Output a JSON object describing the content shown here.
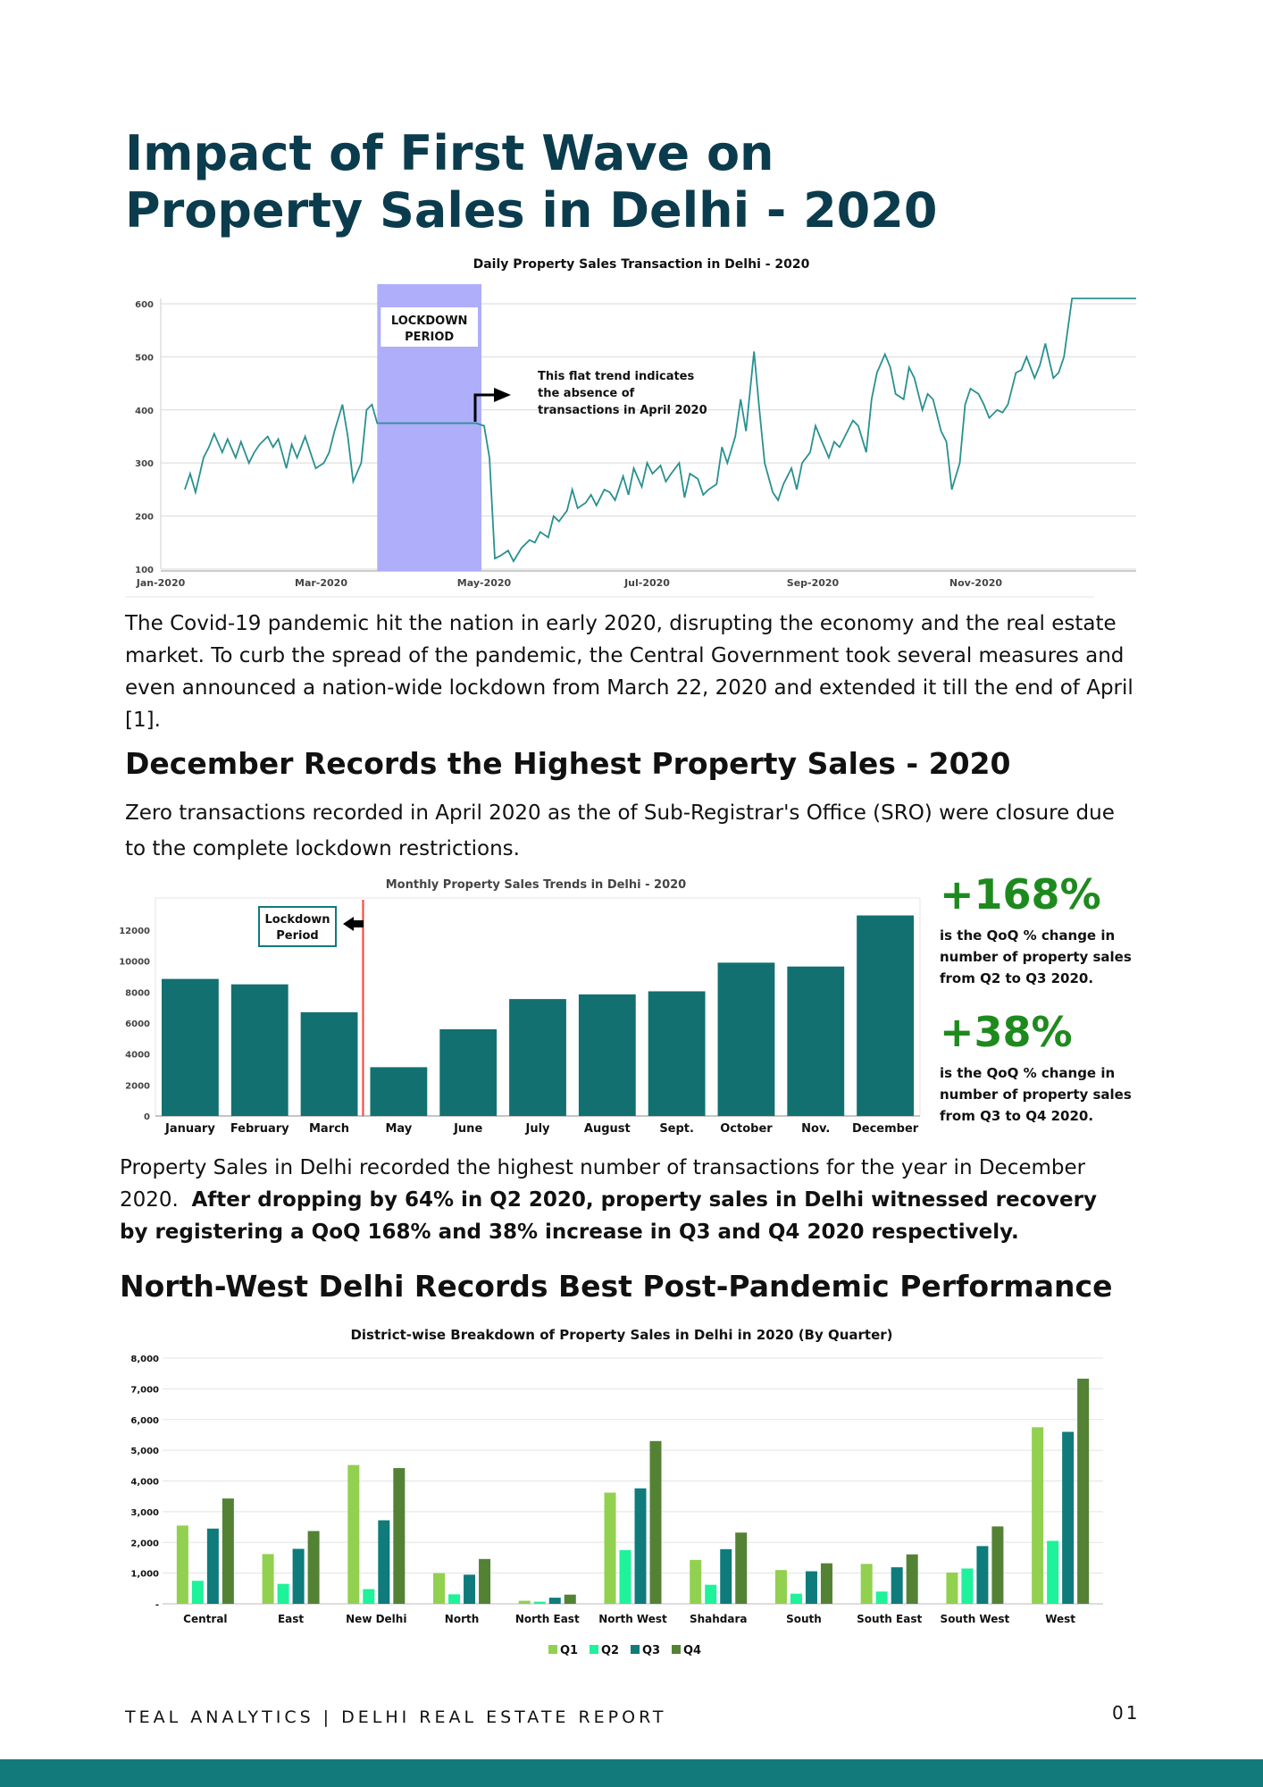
{
  "page": {
    "title": "Impact of First Wave on Property Sales in Delhi - 2020",
    "intro_paragraph": "The Covid-19 pandemic hit the nation in early 2020, disrupting the economy and the real estate market.  To curb the spread of the pandemic, the Central Government took several measures and even announced a nation-wide lockdown from March 22, 2020 and extended it till the end of April [1].",
    "section2_heading": "December Records the Highest Property Sales - 2020",
    "section2_paragraph": "Zero transactions recorded in April 2020 as the of Sub-Registrar's Office (SRO) were closure due to the complete lockdown restrictions.",
    "section2_summary_regular": "Property Sales in Delhi recorded the highest number of transactions for the year in December 2020.",
    "section2_summary_bold": "After dropping by 64% in Q2 2020, property sales in Delhi witnessed recovery by registering a QoQ 168% and 38% increase in Q3 and Q4 2020 respectively.",
    "section3_heading": "North-West Delhi Records Best Post-Pandemic Performance",
    "footer_brand": "TEAL ANALYTICS | DELHI REAL ESTATE REPORT",
    "footer_page": "01"
  },
  "stats": [
    {
      "value": "+168%",
      "description": "is the QoQ % change in number of property sales from Q2 to Q3 2020."
    },
    {
      "value": "+38%",
      "description": "is the QoQ % change in number of property sales from Q3 to Q4 2020."
    }
  ],
  "colors": {
    "title": "#0b3c4d",
    "accent_teal": "#127a7a",
    "stat_green": "#1e8a1e",
    "lockdown_band": "#aeaefa",
    "q1": "#92d050",
    "q2": "#1ef29a",
    "q3": "#0f7b7b",
    "q4": "#548235"
  },
  "chart_data": [
    {
      "type": "line",
      "title": "Daily Property Sales Transaction in Delhi - 2020",
      "x_ticks": [
        "Jan-2020",
        "Mar-2020",
        "May-2020",
        "Jul-2020",
        "Sep-2020",
        "Nov-2020"
      ],
      "ylim": [
        100,
        610
      ],
      "y_ticks": [
        100,
        200,
        300,
        400,
        500,
        600
      ],
      "grid": true,
      "lockdown_label": "LOCKDOWN PERIOD",
      "annotation": "This flat trend indicates the absence of transactions in April 2020",
      "lockdown_range": [
        "2020-03-22",
        "2020-04-30"
      ],
      "series": [
        {
          "x": [
            "2020-01-10",
            "2020-01-12",
            "2020-01-14",
            "2020-01-17",
            "2020-01-19",
            "2020-01-21",
            "2020-01-24",
            "2020-01-26",
            "2020-01-29",
            "2020-01-31",
            "2020-02-03",
            "2020-02-05",
            "2020-02-07",
            "2020-02-10",
            "2020-02-12",
            "2020-02-14",
            "2020-02-17",
            "2020-02-19",
            "2020-02-21",
            "2020-02-24",
            "2020-02-26",
            "2020-02-28",
            "2020-03-02",
            "2020-03-04",
            "2020-03-06",
            "2020-03-09",
            "2020-03-11",
            "2020-03-13",
            "2020-03-16",
            "2020-03-18",
            "2020-03-20",
            "2020-03-22",
            "2020-03-24",
            "2020-04-10",
            "2020-04-20",
            "2020-04-28",
            "2020-05-01",
            "2020-05-03",
            "2020-05-05",
            "2020-05-07",
            "2020-05-10",
            "2020-05-12",
            "2020-05-15",
            "2020-05-18",
            "2020-05-20",
            "2020-05-22",
            "2020-05-25",
            "2020-05-27",
            "2020-05-29",
            "2020-06-01",
            "2020-06-03",
            "2020-06-05",
            "2020-06-08",
            "2020-06-10",
            "2020-06-12",
            "2020-06-15",
            "2020-06-17",
            "2020-06-19",
            "2020-06-22",
            "2020-06-24",
            "2020-06-26",
            "2020-06-29",
            "2020-07-01",
            "2020-07-03",
            "2020-07-06",
            "2020-07-08",
            "2020-07-10",
            "2020-07-13",
            "2020-07-15",
            "2020-07-17",
            "2020-07-20",
            "2020-07-22",
            "2020-07-24",
            "2020-07-27",
            "2020-07-29",
            "2020-07-31",
            "2020-08-03",
            "2020-08-05",
            "2020-08-07",
            "2020-08-10",
            "2020-08-12",
            "2020-08-14",
            "2020-08-17",
            "2020-08-19",
            "2020-08-21",
            "2020-08-24",
            "2020-08-26",
            "2020-08-28",
            "2020-08-31",
            "2020-09-02",
            "2020-09-04",
            "2020-09-07",
            "2020-09-09",
            "2020-09-11",
            "2020-09-14",
            "2020-09-16",
            "2020-09-18",
            "2020-09-21",
            "2020-09-23",
            "2020-09-25",
            "2020-09-28",
            "2020-09-30",
            "2020-10-02",
            "2020-10-05",
            "2020-10-07",
            "2020-10-09",
            "2020-10-12",
            "2020-10-14",
            "2020-10-16",
            "2020-10-19",
            "2020-10-21",
            "2020-10-23",
            "2020-10-26",
            "2020-10-28",
            "2020-10-30",
            "2020-11-02",
            "2020-11-04",
            "2020-11-06",
            "2020-11-09",
            "2020-11-11",
            "2020-11-13",
            "2020-11-16",
            "2020-11-18",
            "2020-11-20",
            "2020-11-23",
            "2020-11-25",
            "2020-11-27",
            "2020-11-30",
            "2020-12-02",
            "2020-12-04",
            "2020-12-07",
            "2020-12-09",
            "2020-12-11",
            "2020-12-14",
            "2020-12-16",
            "2020-12-18",
            "2020-12-21",
            "2020-12-23",
            "2020-12-25",
            "2020-12-28",
            "2020-12-30",
            "2020-12-31"
          ],
          "y": [
            250,
            280,
            245,
            310,
            330,
            355,
            320,
            345,
            310,
            340,
            300,
            320,
            335,
            350,
            330,
            345,
            290,
            335,
            310,
            350,
            320,
            290,
            300,
            320,
            360,
            410,
            350,
            265,
            300,
            400,
            410,
            375,
            375,
            375,
            375,
            375,
            370,
            310,
            120,
            125,
            135,
            115,
            140,
            155,
            150,
            170,
            160,
            200,
            190,
            210,
            250,
            215,
            225,
            240,
            220,
            250,
            245,
            230,
            275,
            240,
            290,
            255,
            300,
            280,
            295,
            265,
            280,
            300,
            235,
            280,
            270,
            240,
            250,
            260,
            330,
            300,
            350,
            420,
            360,
            510,
            400,
            300,
            245,
            230,
            260,
            290,
            250,
            300,
            320,
            370,
            345,
            310,
            340,
            330,
            360,
            380,
            370,
            320,
            420,
            470,
            505,
            480,
            430,
            420,
            480,
            460,
            400,
            430,
            420,
            360,
            340,
            250,
            300,
            410,
            440,
            430,
            410,
            385,
            400,
            395,
            410,
            470,
            475,
            500,
            460,
            485,
            525,
            460,
            470,
            500,
            610,
            610,
            610,
            610,
            610,
            610,
            610,
            610,
            610,
            610,
            610,
            610
          ],
          "color": "#2a9090"
        }
      ]
    },
    {
      "type": "bar",
      "title": "Monthly Property Sales Trends in Delhi - 2020",
      "categories": [
        "January",
        "February",
        "March",
        "May",
        "June",
        "July",
        "August",
        "Sept.",
        "October",
        "Nov.",
        "December"
      ],
      "values": [
        8850,
        8500,
        6700,
        3150,
        5600,
        7550,
        7850,
        8050,
        9900,
        9650,
        12950
      ],
      "ylim": [
        0,
        13500
      ],
      "y_ticks": [
        0,
        2000,
        4000,
        6000,
        8000,
        10000,
        12000
      ],
      "lockdown_label": "Lockdown Period",
      "color": "#127070"
    },
    {
      "type": "bar",
      "title": "District-wise Breakdown of Property Sales in Delhi in 2020 (By Quarter)",
      "categories": [
        "Central",
        "East",
        "New Delhi",
        "North",
        "North East",
        "North West",
        "Shahdara",
        "South",
        "South East",
        "South West",
        "West"
      ],
      "ylim": [
        0,
        8000
      ],
      "y_ticks": [
        "-",
        "1,000",
        "2,000",
        "3,000",
        "4,000",
        "5,000",
        "6,000",
        "7,000",
        "8,000"
      ],
      "legend_position": "bottom",
      "grid": true,
      "series": [
        {
          "name": "Q1",
          "values": [
            2550,
            1620,
            4520,
            1000,
            100,
            3620,
            1430,
            1100,
            1300,
            1020,
            5750
          ],
          "color": "#92d050"
        },
        {
          "name": "Q2",
          "values": [
            750,
            650,
            480,
            310,
            70,
            1750,
            620,
            330,
            400,
            1150,
            2050
          ],
          "color": "#1ef29a"
        },
        {
          "name": "Q3",
          "values": [
            2450,
            1790,
            2720,
            950,
            200,
            3760,
            1780,
            1060,
            1190,
            1880,
            5600
          ],
          "color": "#0f7b7b"
        },
        {
          "name": "Q4",
          "values": [
            3430,
            2370,
            4420,
            1460,
            300,
            5300,
            2320,
            1320,
            1610,
            2520,
            7330
          ],
          "color": "#548235"
        }
      ]
    }
  ]
}
